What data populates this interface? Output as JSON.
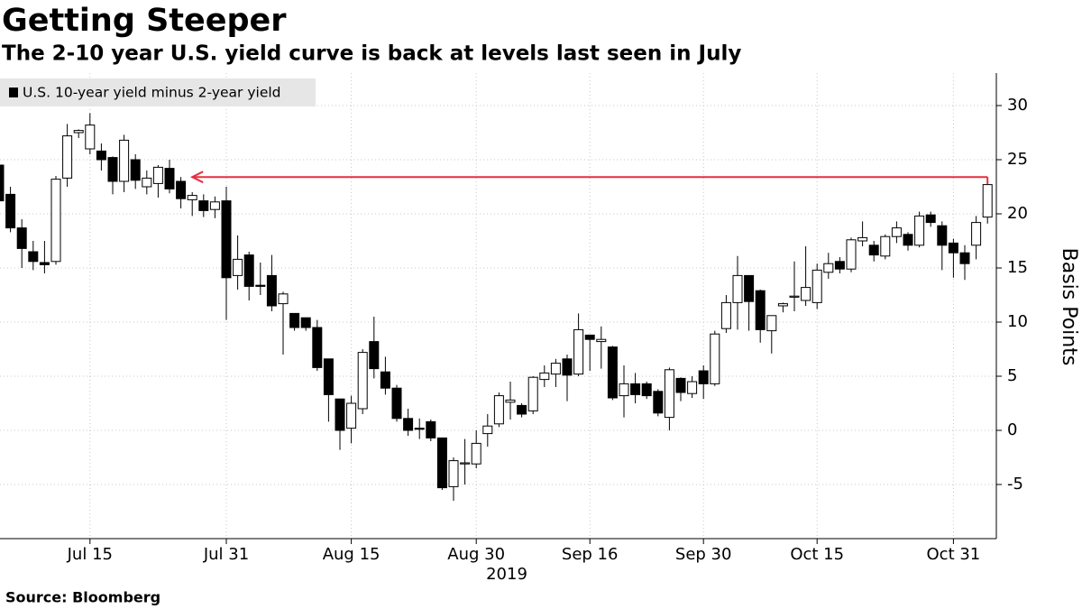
{
  "chart_data": {
    "type": "candlestick",
    "title": "Getting Steeper",
    "subtitle": "The 2-10 year U.S. yield curve is back at levels last seen in July",
    "source": "Source: Bloomberg",
    "ylabel": "Basis Points",
    "xlabel": "2019",
    "categories": [
      "Jul 2",
      "Jul 3",
      "Jul 5",
      "Jul 8",
      "Jul 9",
      "Jul 10",
      "Jul 11",
      "Jul 12",
      "Jul 15",
      "Jul 16",
      "Jul 17",
      "Jul 18",
      "Jul 19",
      "Jul 22",
      "Jul 23",
      "Jul 24",
      "Jul 25",
      "Jul 26",
      "Jul 29",
      "Jul 30",
      "Jul 31",
      "Aug 1",
      "Aug 2",
      "Aug 5",
      "Aug 6",
      "Aug 7",
      "Aug 8",
      "Aug 9",
      "Aug 12",
      "Aug 13",
      "Aug 14",
      "Aug 15",
      "Aug 16",
      "Aug 19",
      "Aug 20",
      "Aug 21",
      "Aug 22",
      "Aug 23",
      "Aug 26",
      "Aug 27",
      "Aug 28",
      "Aug 29",
      "Aug 30",
      "Sep 3",
      "Sep 4",
      "Sep 5",
      "Sep 6",
      "Sep 9",
      "Sep 10",
      "Sep 11",
      "Sep 12",
      "Sep 13",
      "Sep 16",
      "Sep 17",
      "Sep 18",
      "Sep 19",
      "Sep 20",
      "Sep 23",
      "Sep 24",
      "Sep 25",
      "Sep 26",
      "Sep 27",
      "Sep 30",
      "Oct 1",
      "Oct 2",
      "Oct 3",
      "Oct 4",
      "Oct 7",
      "Oct 8",
      "Oct 9",
      "Oct 10",
      "Oct 11",
      "Oct 15",
      "Oct 16",
      "Oct 17",
      "Oct 18",
      "Oct 21",
      "Oct 22",
      "Oct 23",
      "Oct 24",
      "Oct 25",
      "Oct 28",
      "Oct 29",
      "Oct 30",
      "Oct 31",
      "Nov 1",
      "Nov 4",
      "Nov 5"
    ],
    "xticks": [
      "Jul 15",
      "Jul 31",
      "Aug 15",
      "Aug 30",
      "Sep 16",
      "Sep 30",
      "Oct 15",
      "Oct 31"
    ],
    "series": [
      {
        "name": "U.S. 10-year yield minus 2-year yield",
        "color": "#000000",
        "up_color": "#ffffff",
        "open": [
          24.5,
          21.8,
          18.7,
          16.5,
          15.5,
          15.6,
          23.3,
          27.5,
          26,
          25.8,
          25.2,
          23,
          25,
          22.5,
          22.8,
          24.2,
          23,
          21.3,
          21.2,
          20.4,
          21.2,
          14.3,
          16.2,
          13.4,
          14.3,
          11.7,
          10.8,
          10.4,
          9.5,
          6.6,
          2.9,
          0.2,
          2,
          8.2,
          5.4,
          3.9,
          1.1,
          0.2,
          0.8,
          -0.7,
          -5.2,
          -3.1,
          -3.1,
          -0.3,
          0.6,
          2.6,
          2.3,
          1.8,
          4.7,
          5.2,
          6.6,
          5.2,
          8.8,
          8.2,
          7.7,
          3.2,
          4.3,
          4.3,
          3.6,
          1.2,
          4.8,
          3.4,
          5.5,
          4.3,
          9.4,
          11.8,
          14.3,
          12.9,
          9.2,
          11.5,
          12.3,
          12,
          11.8,
          14.6,
          15.6,
          14.9,
          17.5,
          17.1,
          16.1,
          17.9,
          18.1,
          17.1,
          19.9,
          18.9,
          17.3,
          16.4,
          17.1,
          19.7
        ],
        "high": [
          25.3,
          22.5,
          19.5,
          17.5,
          17.5,
          23.5,
          28.3,
          27.8,
          29.3,
          26.5,
          25.3,
          27.3,
          25.5,
          24,
          24.5,
          25,
          23.4,
          22,
          21.8,
          21.6,
          22.5,
          18,
          16.5,
          15.5,
          16.2,
          12.8,
          10.8,
          10.4,
          10.2,
          6.6,
          2.9,
          3.2,
          7.5,
          10.5,
          6.8,
          4.2,
          2,
          1.1,
          1,
          -0.7,
          -2.5,
          -0.8,
          0,
          1.5,
          3.5,
          4.5,
          2.5,
          5,
          6,
          6.6,
          7,
          10.8,
          8.8,
          9.6,
          7.8,
          6,
          5.3,
          4.5,
          3.8,
          5.8,
          4.9,
          5,
          6,
          9.2,
          12.5,
          16.1,
          14.3,
          13,
          10.6,
          11.8,
          15.6,
          17,
          15.4,
          16.4,
          16,
          17.8,
          19.3,
          17.5,
          18.1,
          19.3,
          18.3,
          20.2,
          20.2,
          19.3,
          17.7,
          17.1,
          19.8,
          23
        ],
        "low": [
          20,
          18.3,
          15,
          14.8,
          14.5,
          15.3,
          22.5,
          27,
          25.5,
          24,
          21.8,
          22,
          22.3,
          21.8,
          21.5,
          21.9,
          20.5,
          19.8,
          19.7,
          19.6,
          10.2,
          13,
          12,
          12.5,
          11,
          7,
          9.2,
          9.2,
          5.5,
          0.8,
          -1.8,
          -1.2,
          1.5,
          4.8,
          3.3,
          0.8,
          -0.5,
          -0.8,
          -1,
          -5.5,
          -6.5,
          -5,
          -3.5,
          -1.5,
          0.3,
          1,
          1.2,
          1.5,
          4,
          4,
          2.7,
          5,
          5.5,
          5.7,
          2.8,
          1.2,
          2.5,
          2.9,
          1.3,
          0,
          2.7,
          3,
          2.9,
          4.1,
          9,
          9.3,
          9.2,
          8.1,
          7.1,
          10.9,
          11,
          11.5,
          11.2,
          14,
          14.5,
          14.6,
          17,
          15.6,
          15.8,
          17.3,
          16.6,
          16.9,
          18.8,
          14.8,
          14.1,
          13.9,
          15.8,
          19.1
        ],
        "close": [
          21.2,
          18.7,
          16.8,
          15.6,
          15.3,
          23.2,
          27.2,
          27.7,
          28.2,
          25,
          23,
          26.8,
          23.1,
          23.3,
          24.3,
          22.3,
          21.4,
          21.7,
          20.3,
          21.1,
          14.1,
          15.8,
          13.3,
          13.3,
          11.5,
          12.6,
          9.5,
          9.5,
          5.8,
          3.3,
          0,
          2.5,
          7.2,
          5.7,
          3.9,
          1.1,
          0,
          0.1,
          -0.7,
          -5.3,
          -2.8,
          -3,
          -1.2,
          0.4,
          3.2,
          2.8,
          1.5,
          4.9,
          5.3,
          6.2,
          5.1,
          9.3,
          8.4,
          8.4,
          3,
          4.3,
          3.3,
          3.2,
          1.6,
          5.6,
          3.5,
          4.5,
          4.3,
          8.9,
          11.8,
          14.3,
          11.9,
          9.3,
          10.6,
          11.7,
          12.4,
          13.2,
          14.8,
          15.4,
          14.9,
          17.6,
          17.8,
          16.2,
          17.9,
          18.7,
          17.1,
          19.8,
          19.2,
          17.1,
          16.4,
          15.4,
          19.2,
          22.7
        ]
      }
    ],
    "arrow": {
      "value": 23.4,
      "from": "Nov 5",
      "to": "Jul 26",
      "color": "#e4303f"
    },
    "ylim": [
      -10,
      33
    ],
    "yticks": [
      -5,
      0,
      5,
      10,
      15,
      20,
      25,
      30
    ],
    "grid": true,
    "legend": "top-left"
  }
}
